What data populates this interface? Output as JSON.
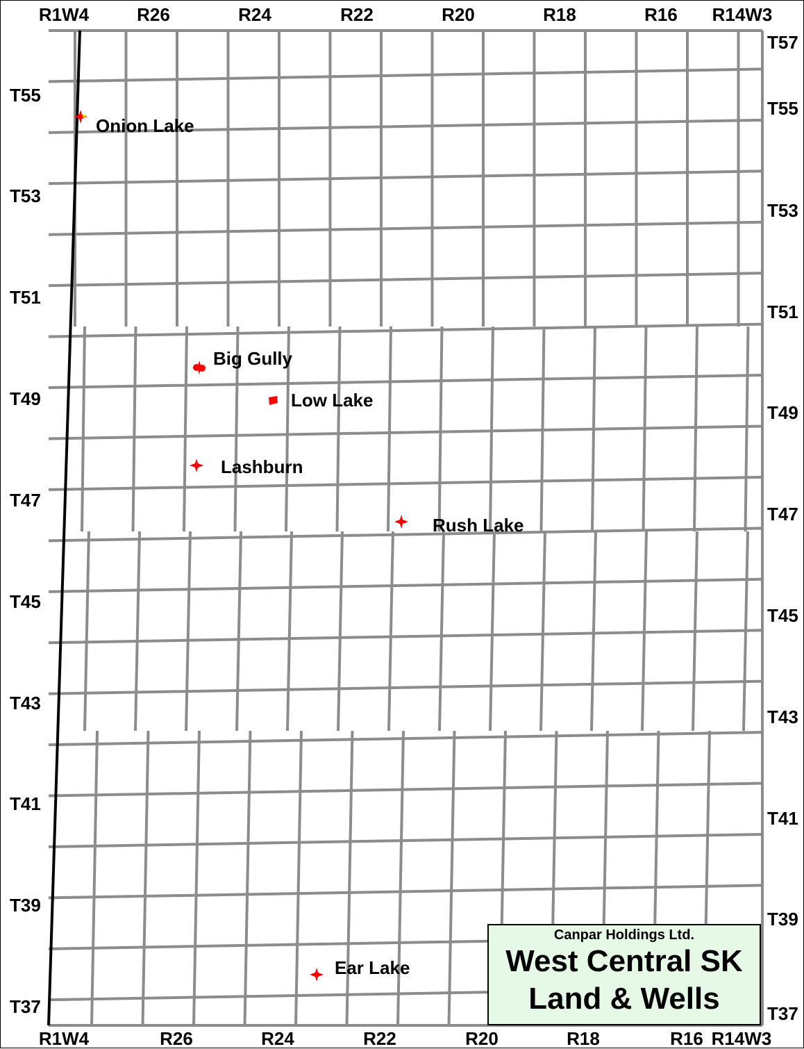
{
  "ranges_top": [
    "R1W4",
    "R26",
    "R24",
    "R22",
    "R20",
    "R18",
    "R16",
    "R14W3"
  ],
  "ranges_bottom": [
    "R1W4",
    "R26",
    "R24",
    "R22",
    "R20",
    "R18",
    "R16",
    "R14W3"
  ],
  "townships_left": [
    "T55",
    "T53",
    "T51",
    "T49",
    "T47",
    "T45",
    "T43",
    "T41",
    "T39",
    "T37"
  ],
  "townships_right": [
    "T57",
    "T55",
    "T53",
    "T51",
    "T49",
    "T47",
    "T45",
    "T43",
    "T41",
    "T39",
    "T37"
  ],
  "sites": [
    {
      "name": "Onion Lake",
      "icon": "well-cluster-icon"
    },
    {
      "name": "Big Gully",
      "icon": "well-cluster-icon"
    },
    {
      "name": "Low Lake",
      "icon": "well-cluster-icon"
    },
    {
      "name": "Lashburn",
      "icon": "well-cluster-icon"
    },
    {
      "name": "Rush Lake",
      "icon": "well-cluster-icon"
    },
    {
      "name": "Ear Lake",
      "icon": "well-cluster-icon"
    }
  ],
  "title_box": {
    "company": "Canpar Holdings Ltd.",
    "line1": "West Central SK",
    "line2": "Land & Wells"
  },
  "colors": {
    "grid": "#8c8c8c",
    "meridian": "#000000",
    "well": "#ff0000",
    "title_bg": "#e6f9e6"
  }
}
